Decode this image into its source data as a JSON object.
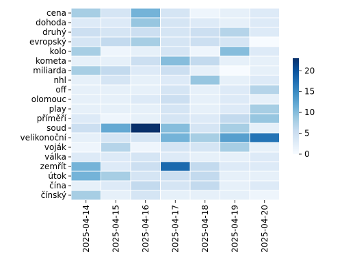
{
  "chart_data": {
    "type": "heatmap",
    "title": "",
    "xlabel": "",
    "ylabel": "",
    "x": [
      "2025-04-14",
      "2025-04-15",
      "2025-04-16",
      "2025-04-17",
      "2025-04-18",
      "2025-04-19",
      "2025-04-20"
    ],
    "y": [
      "cena",
      "dohoda",
      "druhý",
      "evropský",
      "kolo",
      "kometa",
      "miliarda",
      "nhl",
      "off",
      "olomouc",
      "play",
      "příměří",
      "soud",
      "velikonoční",
      "voják",
      "válka",
      "zemřít",
      "útok",
      "čína",
      "čínský"
    ],
    "values": [
      [
        8,
        4,
        11,
        4,
        1,
        2,
        3
      ],
      [
        3,
        3,
        9,
        4,
        3,
        2,
        3
      ],
      [
        5,
        4,
        5,
        4,
        5,
        7,
        3
      ],
      [
        4,
        6,
        8,
        4,
        5,
        4,
        0
      ],
      [
        8,
        1,
        2,
        4,
        1,
        10,
        3
      ],
      [
        2,
        2,
        5,
        10,
        6,
        2,
        2
      ],
      [
        8,
        6,
        3,
        5,
        2,
        0,
        2
      ],
      [
        2,
        4,
        2,
        3,
        9,
        2,
        3
      ],
      [
        2,
        2,
        2,
        4,
        2,
        3,
        7
      ],
      [
        2,
        2,
        3,
        5,
        2,
        3,
        2
      ],
      [
        2,
        2,
        2,
        4,
        2,
        3,
        8
      ],
      [
        3,
        1,
        2,
        4,
        3,
        6,
        9
      ],
      [
        5,
        12,
        23,
        10,
        4,
        8,
        2
      ],
      [
        2,
        4,
        4,
        11,
        8,
        13,
        17
      ],
      [
        1,
        7,
        1,
        4,
        4,
        8,
        2
      ],
      [
        3,
        3,
        4,
        3,
        2,
        2,
        3
      ],
      [
        11,
        3,
        5,
        18,
        6,
        3,
        3
      ],
      [
        11,
        8,
        4,
        5,
        6,
        2,
        2
      ],
      [
        2,
        3,
        6,
        4,
        6,
        2,
        3
      ],
      [
        8,
        2,
        4,
        2,
        2,
        2,
        1
      ]
    ],
    "colorbar": {
      "range": [
        0,
        23
      ],
      "ticks": [
        0,
        5,
        10,
        15,
        20
      ]
    },
    "colormap": "Blues",
    "cell_border_color": "#ffffff",
    "grid": false
  }
}
